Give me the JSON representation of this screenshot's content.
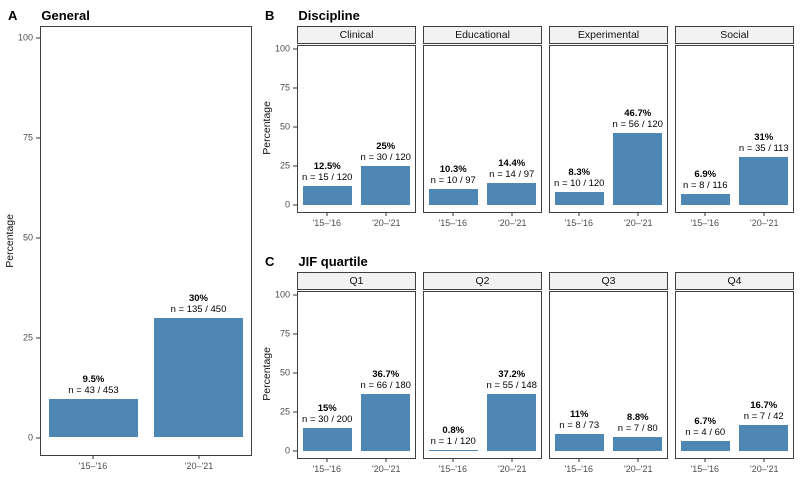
{
  "colors": {
    "bar": "#4E87B4",
    "strip_bg": "#F2F2F2",
    "border": "#3F3F3F",
    "tick_text": "#4D4D4D"
  },
  "y_axis": {
    "label": "Percentage",
    "ticks": [
      100,
      75,
      50,
      25,
      0
    ]
  },
  "x_categories": [
    "'15–'16",
    "'20–'21"
  ],
  "panels": [
    {
      "label": "A",
      "title": "General",
      "facets": [
        {
          "strip": "",
          "bars": [
            {
              "pct": 9.5,
              "pct_label": "9.5%",
              "n_label": "n = 43 / 453"
            },
            {
              "pct": 30,
              "pct_label": "30%",
              "n_label": "n = 135 / 450"
            }
          ]
        }
      ]
    },
    {
      "label": "B",
      "title": "Discipline",
      "facets": [
        {
          "strip": "Clinical",
          "bars": [
            {
              "pct": 12.5,
              "pct_label": "12.5%",
              "n_label": "n = 15 / 120"
            },
            {
              "pct": 25,
              "pct_label": "25%",
              "n_label": "n = 30 / 120"
            }
          ]
        },
        {
          "strip": "Educational",
          "bars": [
            {
              "pct": 10.3,
              "pct_label": "10.3%",
              "n_label": "n = 10 / 97"
            },
            {
              "pct": 14.4,
              "pct_label": "14.4%",
              "n_label": "n = 14 / 97"
            }
          ]
        },
        {
          "strip": "Experimental",
          "bars": [
            {
              "pct": 8.3,
              "pct_label": "8.3%",
              "n_label": "n = 10 / 120"
            },
            {
              "pct": 46.7,
              "pct_label": "46.7%",
              "n_label": "n = 56 / 120"
            }
          ]
        },
        {
          "strip": "Social",
          "bars": [
            {
              "pct": 6.9,
              "pct_label": "6.9%",
              "n_label": "n = 8 / 116"
            },
            {
              "pct": 31,
              "pct_label": "31%",
              "n_label": "n = 35 / 113"
            }
          ]
        }
      ]
    },
    {
      "label": "C",
      "title": "JIF quartile",
      "facets": [
        {
          "strip": "Q1",
          "bars": [
            {
              "pct": 15,
              "pct_label": "15%",
              "n_label": "n = 30 / 200"
            },
            {
              "pct": 36.7,
              "pct_label": "36.7%",
              "n_label": "n = 66 / 180"
            }
          ]
        },
        {
          "strip": "Q2",
          "bars": [
            {
              "pct": 0.8,
              "pct_label": "0.8%",
              "n_label": "n = 1 / 120"
            },
            {
              "pct": 37.2,
              "pct_label": "37.2%",
              "n_label": "n = 55 / 148"
            }
          ]
        },
        {
          "strip": "Q3",
          "bars": [
            {
              "pct": 11,
              "pct_label": "11%",
              "n_label": "n = 8 / 73"
            },
            {
              "pct": 8.8,
              "pct_label": "8.8%",
              "n_label": "n = 7 / 80"
            }
          ]
        },
        {
          "strip": "Q4",
          "bars": [
            {
              "pct": 6.7,
              "pct_label": "6.7%",
              "n_label": "n = 4 / 60"
            },
            {
              "pct": 16.7,
              "pct_label": "16.7%",
              "n_label": "n = 7 / 42"
            }
          ]
        }
      ]
    }
  ],
  "chart_data": [
    {
      "type": "bar",
      "title": "A General",
      "categories": [
        "'15–'16",
        "'20–'21"
      ],
      "values": [
        9.5,
        30
      ],
      "annotations": [
        "n = 43 / 453",
        "n = 135 / 450"
      ],
      "xlabel": "",
      "ylabel": "Percentage",
      "ylim": [
        0,
        100
      ],
      "grid": false,
      "legend": false
    },
    {
      "type": "bar",
      "title": "B Discipline (faceted)",
      "categories": [
        "'15–'16",
        "'20–'21"
      ],
      "series": [
        {
          "name": "Clinical",
          "values": [
            12.5,
            25
          ],
          "annotations": [
            "n = 15 / 120",
            "n = 30 / 120"
          ]
        },
        {
          "name": "Educational",
          "values": [
            10.3,
            14.4
          ],
          "annotations": [
            "n = 10 / 97",
            "n = 14 / 97"
          ]
        },
        {
          "name": "Experimental",
          "values": [
            8.3,
            46.7
          ],
          "annotations": [
            "n = 10 / 120",
            "n = 56 / 120"
          ]
        },
        {
          "name": "Social",
          "values": [
            6.9,
            31
          ],
          "annotations": [
            "n = 8 / 116",
            "n = 35 / 113"
          ]
        }
      ],
      "xlabel": "",
      "ylabel": "Percentage",
      "ylim": [
        0,
        100
      ],
      "grid": false,
      "legend": false
    },
    {
      "type": "bar",
      "title": "C JIF quartile (faceted)",
      "categories": [
        "'15–'16",
        "'20–'21"
      ],
      "series": [
        {
          "name": "Q1",
          "values": [
            15,
            36.7
          ],
          "annotations": [
            "n = 30 / 200",
            "n = 66 / 180"
          ]
        },
        {
          "name": "Q2",
          "values": [
            0.8,
            37.2
          ],
          "annotations": [
            "n = 1 / 120",
            "n = 55 / 148"
          ]
        },
        {
          "name": "Q3",
          "values": [
            11,
            8.8
          ],
          "annotations": [
            "n = 8 / 73",
            "n = 7 / 80"
          ]
        },
        {
          "name": "Q4",
          "values": [
            6.7,
            16.7
          ],
          "annotations": [
            "n = 4 / 60",
            "n = 7 / 42"
          ]
        }
      ],
      "xlabel": "",
      "ylabel": "Percentage",
      "ylim": [
        0,
        100
      ],
      "grid": false,
      "legend": false
    }
  ]
}
